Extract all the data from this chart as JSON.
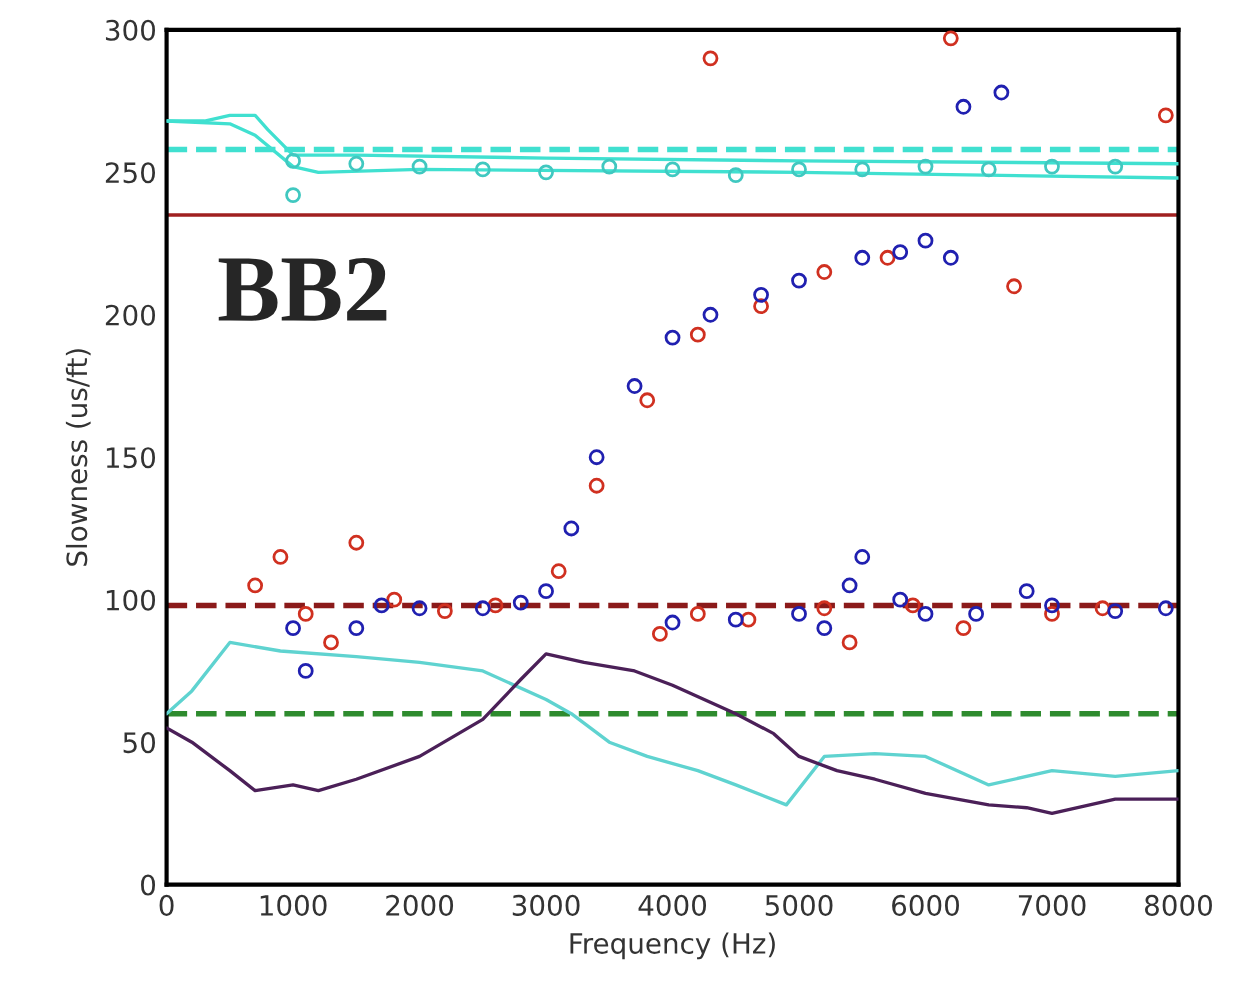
{
  "chart_data": {
    "type": "scatter",
    "xlabel": "Frequency (Hz)",
    "ylabel": "Slowness (us/ft)",
    "annotations": [
      "BB2"
    ],
    "xlim": [
      0,
      8000
    ],
    "ylim": [
      0,
      300
    ],
    "xticks": [
      0,
      1000,
      2000,
      3000,
      4000,
      5000,
      6000,
      7000,
      8000
    ],
    "yticks": [
      0,
      50,
      100,
      150,
      200,
      250,
      300
    ],
    "grid": false,
    "legend": false,
    "series": [
      {
        "type": "line",
        "color": "#40e0d0",
        "line_style": "solid",
        "marker": "none",
        "x": [
          0,
          300,
          500,
          700,
          800,
          1000,
          1500,
          3000,
          5000,
          8000
        ],
        "values": [
          268,
          268,
          270,
          270,
          265,
          256,
          256,
          255,
          254,
          253
        ]
      },
      {
        "type": "line",
        "color": "#40e0d0",
        "line_style": "solid",
        "marker": "none",
        "x": [
          0,
          500,
          700,
          1000,
          1200,
          2000,
          5000,
          8000
        ],
        "values": [
          268,
          267,
          263,
          252,
          250,
          251,
          250,
          248
        ]
      },
      {
        "type": "line",
        "color": "#5fd3d0",
        "line_style": "solid",
        "marker": "none",
        "x": [
          0,
          200,
          500,
          900,
          1500,
          2000,
          2500,
          3000,
          3200,
          3500,
          3800,
          4200,
          4500,
          4900,
          5200,
          5600,
          6000,
          6500,
          7000,
          7500,
          8000
        ],
        "values": [
          60,
          68,
          85,
          82,
          80,
          78,
          75,
          65,
          60,
          50,
          45,
          40,
          35,
          28,
          45,
          46,
          45,
          35,
          40,
          38,
          40
        ]
      },
      {
        "type": "line",
        "color": "#4b2058",
        "line_style": "solid",
        "marker": "none",
        "x": [
          0,
          200,
          500,
          700,
          1000,
          1200,
          1500,
          2000,
          2500,
          2800,
          3000,
          3300,
          3700,
          4000,
          4500,
          4800,
          5000,
          5300,
          5600,
          6000,
          6500,
          6800,
          7000,
          7500,
          8000
        ],
        "values": [
          55,
          50,
          40,
          33,
          35,
          33,
          37,
          45,
          58,
          72,
          81,
          78,
          75,
          70,
          60,
          53,
          45,
          40,
          37,
          32,
          28,
          27,
          25,
          30,
          30
        ]
      },
      {
        "color": "#40c8c0",
        "marker": "circle",
        "x": [
          1000,
          1000,
          1500,
          2000,
          2500,
          3000,
          3500,
          4000,
          4500,
          5000,
          5500,
          6000,
          6500,
          7000,
          7500
        ],
        "values": [
          254,
          242,
          253,
          252,
          251,
          250,
          252,
          251,
          249,
          251,
          251,
          252,
          251,
          252,
          252
        ]
      },
      {
        "color": "#d03020",
        "marker": "circle",
        "x": [
          700,
          900,
          1100,
          1300,
          1500,
          1800,
          2200,
          2600,
          3100,
          3400,
          3800,
          4200,
          4700,
          5200,
          5700,
          3900,
          4200,
          4600,
          5200,
          5400,
          5900,
          6300,
          7000,
          7400,
          4300,
          6200,
          7900,
          6700
        ],
        "values": [
          105,
          115,
          95,
          85,
          120,
          100,
          96,
          98,
          110,
          140,
          170,
          193,
          203,
          215,
          220,
          88,
          95,
          93,
          97,
          85,
          98,
          90,
          95,
          97,
          290,
          297,
          270,
          210
        ]
      },
      {
        "color": "#2020b0",
        "marker": "circle",
        "x": [
          1000,
          1100,
          1500,
          1700,
          2000,
          2500,
          2800,
          3000,
          3200,
          3400,
          3700,
          4000,
          4300,
          4700,
          5000,
          5500,
          5800,
          6000,
          6200,
          4000,
          4500,
          5000,
          5200,
          5400,
          5500,
          5800,
          6000,
          6400,
          6800,
          7000,
          7500,
          7900,
          6300,
          6600
        ],
        "values": [
          90,
          75,
          90,
          98,
          97,
          97,
          99,
          103,
          125,
          150,
          175,
          192,
          200,
          207,
          212,
          220,
          222,
          226,
          220,
          92,
          93,
          95,
          90,
          105,
          115,
          100,
          95,
          95,
          103,
          98,
          96,
          97,
          273,
          278
        ]
      }
    ],
    "ref_lines": [
      {
        "axis": "y",
        "value": 258,
        "color": "#40e0d0",
        "line_style": "dashed"
      },
      {
        "axis": "y",
        "value": 235,
        "color": "#a02020",
        "line_style": "solid"
      },
      {
        "axis": "y",
        "value": 98,
        "color": "#8b1a1a",
        "line_style": "dashed"
      },
      {
        "axis": "y",
        "value": 60,
        "color": "#2e8b2e",
        "line_style": "dashed"
      }
    ]
  }
}
